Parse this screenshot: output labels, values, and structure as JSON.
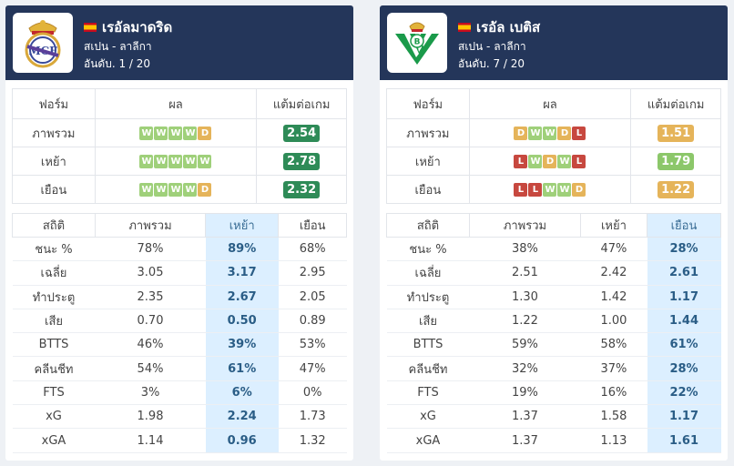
{
  "colors": {
    "header_bg": "#24365a",
    "win": "#9fd07a",
    "draw": "#e5b45a",
    "loss": "#c7483f",
    "highlight": "#dcefff",
    "ppg_dark_green": "#2e8b57",
    "ppg_light_green": "#8cc76a",
    "ppg_orange": "#e5b45a"
  },
  "teams": [
    {
      "name": "เรอัลมาดริด",
      "league": "สเปน - ลาลีกา",
      "rank": "อันดับ. 1 / 20",
      "form_headers": [
        "ฟอร์ม",
        "ผล",
        "แต้มต่อเกม"
      ],
      "form_rows": [
        {
          "label": "ภาพรวม",
          "results": [
            "W",
            "W",
            "W",
            "W",
            "D"
          ],
          "ppg": "2.54",
          "ppg_color": "#2e8b57"
        },
        {
          "label": "เหย้า",
          "results": [
            "W",
            "W",
            "W",
            "W",
            "W"
          ],
          "ppg": "2.78",
          "ppg_color": "#2e8b57"
        },
        {
          "label": "เยือน",
          "results": [
            "W",
            "W",
            "W",
            "W",
            "D"
          ],
          "ppg": "2.32",
          "ppg_color": "#2e8b57"
        }
      ],
      "stat_headers": [
        "สถิติ",
        "ภาพรวม",
        "เหย้า",
        "เยือน"
      ],
      "highlight_col": 2,
      "stat_rows": [
        [
          "ชนะ %",
          "78%",
          "89%",
          "68%"
        ],
        [
          "เฉลี่ย",
          "3.05",
          "3.17",
          "2.95"
        ],
        [
          "ทำประตู",
          "2.35",
          "2.67",
          "2.05"
        ],
        [
          "เสีย",
          "0.70",
          "0.50",
          "0.89"
        ],
        [
          "BTTS",
          "46%",
          "39%",
          "53%"
        ],
        [
          "คลีนชีท",
          "54%",
          "61%",
          "47%"
        ],
        [
          "FTS",
          "3%",
          "6%",
          "0%"
        ],
        [
          "xG",
          "1.98",
          "2.24",
          "1.73"
        ],
        [
          "xGA",
          "1.14",
          "0.96",
          "1.32"
        ]
      ]
    },
    {
      "name": "เรอัล เบติส",
      "league": "สเปน - ลาลีกา",
      "rank": "อันดับ. 7 / 20",
      "form_headers": [
        "ฟอร์ม",
        "ผล",
        "แต้มต่อเกม"
      ],
      "form_rows": [
        {
          "label": "ภาพรวม",
          "results": [
            "D",
            "W",
            "W",
            "D",
            "L"
          ],
          "ppg": "1.51",
          "ppg_color": "#e5b45a"
        },
        {
          "label": "เหย้า",
          "results": [
            "L",
            "W",
            "D",
            "W",
            "L"
          ],
          "ppg": "1.79",
          "ppg_color": "#8cc76a"
        },
        {
          "label": "เยือน",
          "results": [
            "L",
            "L",
            "W",
            "W",
            "D"
          ],
          "ppg": "1.22",
          "ppg_color": "#e5b45a"
        }
      ],
      "stat_headers": [
        "สถิติ",
        "ภาพรวม",
        "เหย้า",
        "เยือน"
      ],
      "highlight_col": 3,
      "stat_rows": [
        [
          "ชนะ %",
          "38%",
          "47%",
          "28%"
        ],
        [
          "เฉลี่ย",
          "2.51",
          "2.42",
          "2.61"
        ],
        [
          "ทำประตู",
          "1.30",
          "1.42",
          "1.17"
        ],
        [
          "เสีย",
          "1.22",
          "1.00",
          "1.44"
        ],
        [
          "BTTS",
          "59%",
          "58%",
          "61%"
        ],
        [
          "คลีนชีท",
          "32%",
          "37%",
          "28%"
        ],
        [
          "FTS",
          "19%",
          "16%",
          "22%"
        ],
        [
          "xG",
          "1.37",
          "1.58",
          "1.17"
        ],
        [
          "xGA",
          "1.37",
          "1.13",
          "1.61"
        ]
      ]
    }
  ]
}
